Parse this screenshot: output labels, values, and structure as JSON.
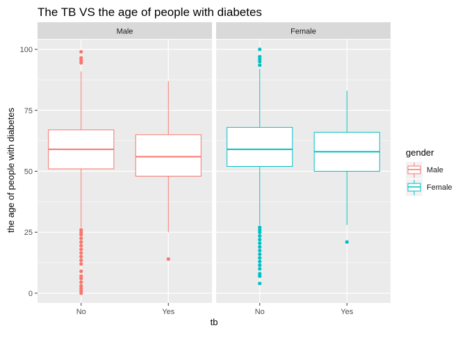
{
  "chart_data": {
    "type": "boxplot",
    "title": "The TB VS the age of people with diabetes",
    "xlabel": "tb",
    "ylabel": "the age of people with diabetes",
    "ylim": [
      -4,
      104
    ],
    "yticks": [
      0,
      25,
      50,
      75,
      100
    ],
    "categories": [
      "No",
      "Yes"
    ],
    "grid": true,
    "facets": [
      {
        "label": "Male",
        "color": "#F8766D",
        "boxes": [
          {
            "category": "No",
            "q1": 51,
            "median": 59,
            "q3": 67,
            "whisker_low": 27,
            "whisker_high": 91,
            "outliers": [
              0,
              1,
              2,
              3,
              4.5,
              6,
              7,
              9,
              12,
              13.5,
              15,
              16.5,
              18,
              19.5,
              21,
              22.5,
              24,
              25,
              26,
              94.5,
              95.5,
              96.5,
              99
            ]
          },
          {
            "category": "Yes",
            "q1": 48,
            "median": 56,
            "q3": 65,
            "whisker_low": 25,
            "whisker_high": 87,
            "outliers": [
              14
            ]
          }
        ]
      },
      {
        "label": "Female",
        "color": "#00BFC4",
        "boxes": [
          {
            "category": "No",
            "q1": 52,
            "median": 59,
            "q3": 68,
            "whisker_low": 28,
            "whisker_high": 92,
            "outliers": [
              4,
              7,
              8,
              10,
              11.5,
              13,
              14.5,
              16,
              17.5,
              19,
              20.5,
              22,
              23.5,
              25,
              26,
              27,
              93.5,
              95,
              96,
              97,
              100
            ]
          },
          {
            "category": "Yes",
            "q1": 50,
            "median": 58,
            "q3": 66,
            "whisker_low": 28,
            "whisker_high": 83,
            "outliers": [
              21
            ]
          }
        ]
      }
    ],
    "legend": {
      "title": "gender",
      "placement": "right",
      "items": [
        {
          "label": "Male",
          "color": "#F8766D"
        },
        {
          "label": "Female",
          "color": "#00BFC4"
        }
      ]
    }
  }
}
